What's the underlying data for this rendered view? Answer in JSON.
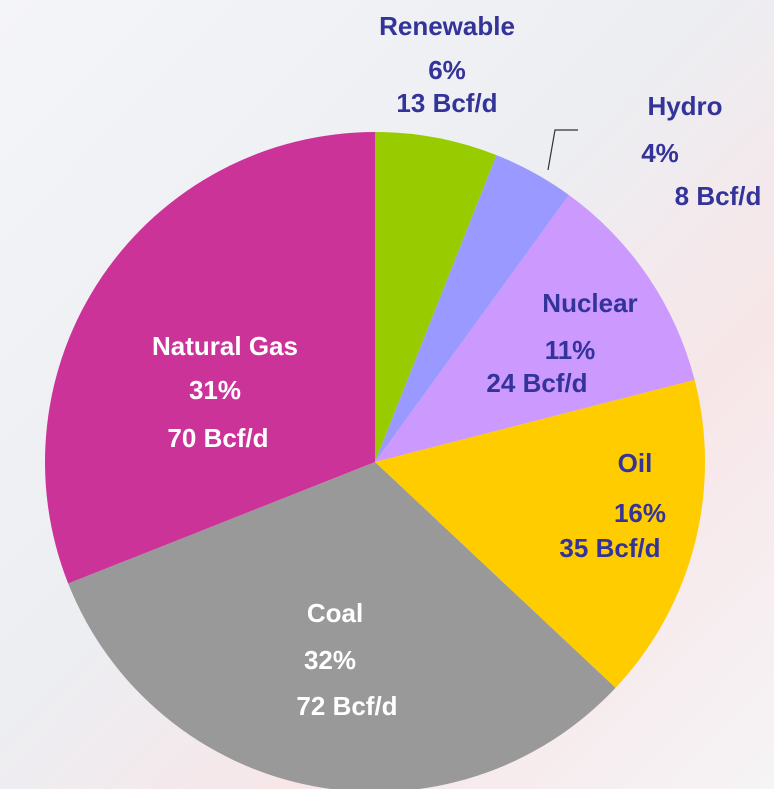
{
  "chart_data": {
    "type": "pie",
    "categories": [
      "Renewable",
      "Hydro",
      "Nuclear",
      "Oil",
      "Coal",
      "Natural Gas"
    ],
    "values": [
      6,
      4,
      11,
      16,
      32,
      31
    ],
    "value_labels": [
      "6%",
      "4%",
      "11%",
      "16%",
      "32%",
      "31%"
    ],
    "volume_labels": [
      "13 Bcf/d",
      "8 Bcf/d",
      "24 Bcf/d",
      "35 Bcf/d",
      "72 Bcf/d",
      "70 Bcf/d"
    ],
    "colors": [
      "#99cc00",
      "#9999ff",
      "#cc99ff",
      "#ffcc00",
      "#999999",
      "#cc3399"
    ]
  }
}
